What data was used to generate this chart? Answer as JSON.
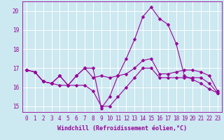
{
  "x": [
    0,
    1,
    2,
    3,
    4,
    5,
    6,
    7,
    8,
    9,
    10,
    11,
    12,
    13,
    14,
    15,
    16,
    17,
    18,
    19,
    20,
    21,
    22,
    23
  ],
  "series": [
    [
      16.9,
      16.8,
      16.3,
      16.2,
      16.6,
      16.1,
      16.6,
      17.0,
      16.5,
      16.6,
      16.5,
      16.6,
      16.7,
      17.0,
      17.4,
      17.5,
      16.7,
      16.7,
      16.8,
      16.9,
      16.9,
      16.8,
      16.6,
      15.8
    ],
    [
      16.9,
      16.8,
      16.3,
      16.2,
      16.6,
      16.1,
      16.6,
      17.0,
      17.0,
      14.9,
      15.5,
      16.6,
      17.5,
      18.5,
      19.7,
      20.2,
      19.6,
      19.3,
      18.3,
      16.6,
      16.4,
      16.2,
      15.9,
      15.7
    ],
    [
      16.9,
      16.8,
      16.3,
      16.2,
      16.1,
      16.1,
      16.1,
      16.1,
      15.8,
      15.0,
      15.0,
      15.5,
      16.0,
      16.5,
      17.0,
      17.0,
      16.5,
      16.5,
      16.5,
      16.5,
      16.5,
      16.5,
      16.2,
      15.7
    ]
  ],
  "line_color": "#990099",
  "marker": "D",
  "markersize": 2.5,
  "linewidth": 0.8,
  "background_color": "#cce8f0",
  "grid_color": "#ffffff",
  "text_color": "#990099",
  "xlabel": "Windchill (Refroidissement éolien,°C)",
  "xlim": [
    -0.5,
    23.5
  ],
  "ylim": [
    14.7,
    20.5
  ],
  "yticks": [
    15,
    16,
    17,
    18,
    19,
    20
  ],
  "xticks": [
    0,
    1,
    2,
    3,
    4,
    5,
    6,
    7,
    8,
    9,
    10,
    11,
    12,
    13,
    14,
    15,
    16,
    17,
    18,
    19,
    20,
    21,
    22,
    23
  ],
  "label_fontsize": 6.0,
  "tick_fontsize": 5.5
}
